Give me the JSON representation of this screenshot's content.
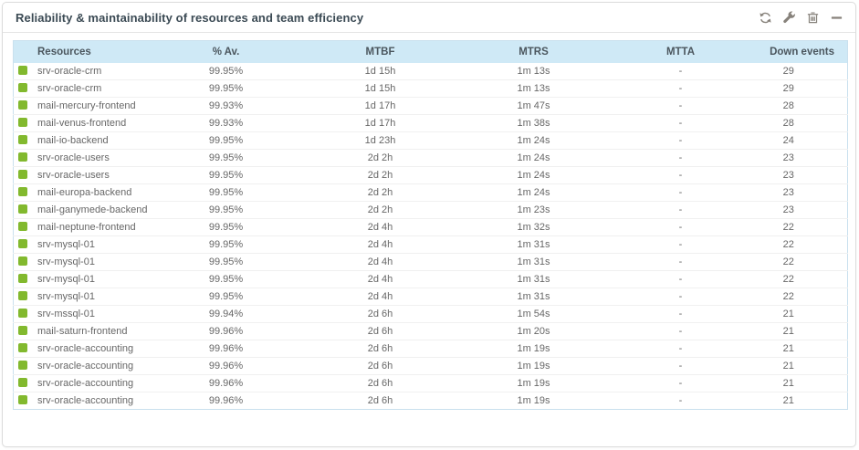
{
  "panel": {
    "title": "Reliability & maintainability of resources and team efficiency",
    "toolbar": {
      "icons": [
        "refresh-icon",
        "wrench-icon",
        "trash-icon",
        "minimize-icon"
      ]
    }
  },
  "colors": {
    "status_ok": "#82B92E",
    "header_bg": "#cfe9f6",
    "table_border": "#c9e0ee",
    "icon_gray": "#87827b",
    "title_text": "#3b4a54",
    "cell_text": "#676767"
  },
  "table": {
    "columns": [
      {
        "key": "resource",
        "label": "Resources"
      },
      {
        "key": "availability",
        "label": "% Av."
      },
      {
        "key": "mtbf",
        "label": "MTBF"
      },
      {
        "key": "mtrs",
        "label": "MTRS"
      },
      {
        "key": "mtta",
        "label": "MTTA"
      },
      {
        "key": "down_events",
        "label": "Down events"
      }
    ],
    "rows": [
      {
        "resource": "srv-oracle-crm",
        "availability": "99.95%",
        "mtbf": "1d 15h",
        "mtrs": "1m 13s",
        "mtta": "-",
        "down_events": "29"
      },
      {
        "resource": "srv-oracle-crm",
        "availability": "99.95%",
        "mtbf": "1d 15h",
        "mtrs": "1m 13s",
        "mtta": "-",
        "down_events": "29"
      },
      {
        "resource": "mail-mercury-frontend",
        "availability": "99.93%",
        "mtbf": "1d 17h",
        "mtrs": "1m 47s",
        "mtta": "-",
        "down_events": "28"
      },
      {
        "resource": "mail-venus-frontend",
        "availability": "99.93%",
        "mtbf": "1d 17h",
        "mtrs": "1m 38s",
        "mtta": "-",
        "down_events": "28"
      },
      {
        "resource": "mail-io-backend",
        "availability": "99.95%",
        "mtbf": "1d 23h",
        "mtrs": "1m 24s",
        "mtta": "-",
        "down_events": "24"
      },
      {
        "resource": "srv-oracle-users",
        "availability": "99.95%",
        "mtbf": "2d 2h",
        "mtrs": "1m 24s",
        "mtta": "-",
        "down_events": "23"
      },
      {
        "resource": "srv-oracle-users",
        "availability": "99.95%",
        "mtbf": "2d 2h",
        "mtrs": "1m 24s",
        "mtta": "-",
        "down_events": "23"
      },
      {
        "resource": "mail-europa-backend",
        "availability": "99.95%",
        "mtbf": "2d 2h",
        "mtrs": "1m 24s",
        "mtta": "-",
        "down_events": "23"
      },
      {
        "resource": "mail-ganymede-backend",
        "availability": "99.95%",
        "mtbf": "2d 2h",
        "mtrs": "1m 23s",
        "mtta": "-",
        "down_events": "23"
      },
      {
        "resource": "mail-neptune-frontend",
        "availability": "99.95%",
        "mtbf": "2d 4h",
        "mtrs": "1m 32s",
        "mtta": "-",
        "down_events": "22"
      },
      {
        "resource": "srv-mysql-01",
        "availability": "99.95%",
        "mtbf": "2d 4h",
        "mtrs": "1m 31s",
        "mtta": "-",
        "down_events": "22"
      },
      {
        "resource": "srv-mysql-01",
        "availability": "99.95%",
        "mtbf": "2d 4h",
        "mtrs": "1m 31s",
        "mtta": "-",
        "down_events": "22"
      },
      {
        "resource": "srv-mysql-01",
        "availability": "99.95%",
        "mtbf": "2d 4h",
        "mtrs": "1m 31s",
        "mtta": "-",
        "down_events": "22"
      },
      {
        "resource": "srv-mysql-01",
        "availability": "99.95%",
        "mtbf": "2d 4h",
        "mtrs": "1m 31s",
        "mtta": "-",
        "down_events": "22"
      },
      {
        "resource": "srv-mssql-01",
        "availability": "99.94%",
        "mtbf": "2d 6h",
        "mtrs": "1m 54s",
        "mtta": "-",
        "down_events": "21"
      },
      {
        "resource": "mail-saturn-frontend",
        "availability": "99.96%",
        "mtbf": "2d 6h",
        "mtrs": "1m 20s",
        "mtta": "-",
        "down_events": "21"
      },
      {
        "resource": "srv-oracle-accounting",
        "availability": "99.96%",
        "mtbf": "2d 6h",
        "mtrs": "1m 19s",
        "mtta": "-",
        "down_events": "21"
      },
      {
        "resource": "srv-oracle-accounting",
        "availability": "99.96%",
        "mtbf": "2d 6h",
        "mtrs": "1m 19s",
        "mtta": "-",
        "down_events": "21"
      },
      {
        "resource": "srv-oracle-accounting",
        "availability": "99.96%",
        "mtbf": "2d 6h",
        "mtrs": "1m 19s",
        "mtta": "-",
        "down_events": "21"
      },
      {
        "resource": "srv-oracle-accounting",
        "availability": "99.96%",
        "mtbf": "2d 6h",
        "mtrs": "1m 19s",
        "mtta": "-",
        "down_events": "21"
      }
    ]
  }
}
